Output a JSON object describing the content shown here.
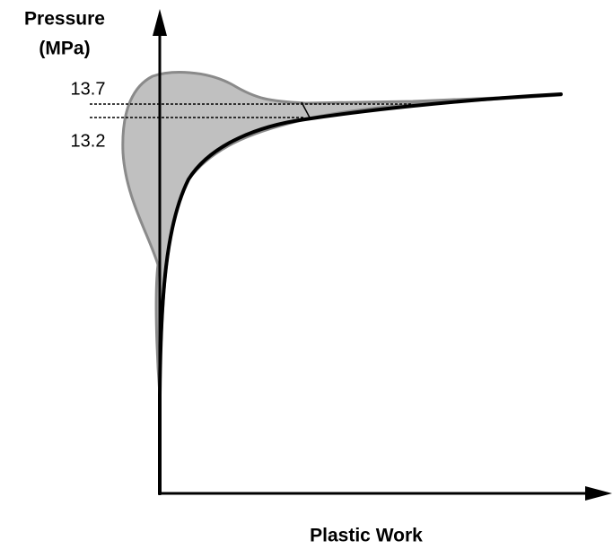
{
  "y_axis": {
    "label_line1": "Pressure",
    "label_line2": "(MPa)"
  },
  "x_axis": {
    "label": "Plastic Work"
  },
  "annotations": {
    "upper": "13.7",
    "lower": "13.2"
  }
}
